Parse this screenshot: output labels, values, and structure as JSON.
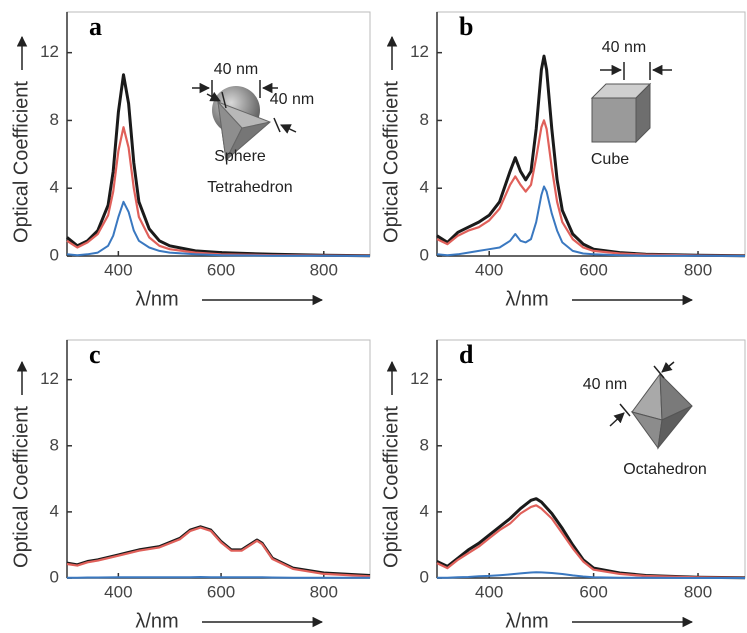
{
  "chart_data": [
    {
      "type": "line",
      "panel_label": "a",
      "size_label": "40 nm",
      "shape_label": "Sphere",
      "x_label": "λ/nm",
      "y_label": "Optical Coefficient",
      "xlim": [
        300,
        890
      ],
      "ylim": [
        0,
        14.4
      ],
      "xticks": [
        400,
        600,
        800
      ],
      "yticks": [
        0,
        4,
        8,
        12
      ],
      "x": [
        300,
        320,
        340,
        360,
        380,
        390,
        400,
        410,
        420,
        430,
        440,
        460,
        480,
        500,
        550,
        600,
        700,
        800,
        890
      ],
      "series": [
        {
          "color": "#1a1a1a",
          "values": [
            1.1,
            0.6,
            0.9,
            1.5,
            3.0,
            5.0,
            8.5,
            10.7,
            9.0,
            5.5,
            3.2,
            1.6,
            0.9,
            0.6,
            0.3,
            0.2,
            0.1,
            0.05,
            0.02
          ]
        },
        {
          "color": "#e0605a",
          "values": [
            0.9,
            0.5,
            0.8,
            1.3,
            2.4,
            3.8,
            6.2,
            7.6,
            6.4,
            4.0,
            2.3,
            1.1,
            0.6,
            0.4,
            0.2,
            0.1,
            0.05,
            0.03,
            0.01
          ]
        },
        {
          "color": "#3a78c0",
          "values": [
            0.1,
            0.05,
            0.1,
            0.2,
            0.6,
            1.2,
            2.3,
            3.2,
            2.6,
            1.5,
            0.9,
            0.5,
            0.3,
            0.2,
            0.1,
            0.05,
            0.02,
            0.01,
            0
          ]
        }
      ]
    },
    {
      "type": "line",
      "panel_label": "b",
      "size_label": "40 nm",
      "shape_label": "Cube",
      "x_label": "λ/nm",
      "y_label": "Optical Coefficient",
      "xlim": [
        300,
        890
      ],
      "ylim": [
        0,
        14.4
      ],
      "xticks": [
        400,
        600,
        800
      ],
      "yticks": [
        0,
        4,
        8,
        12
      ],
      "x": [
        300,
        320,
        340,
        360,
        380,
        400,
        420,
        440,
        450,
        460,
        470,
        480,
        490,
        500,
        505,
        510,
        520,
        530,
        540,
        560,
        580,
        600,
        650,
        700,
        800,
        890
      ],
      "series": [
        {
          "color": "#1a1a1a",
          "values": [
            1.2,
            0.8,
            1.4,
            1.7,
            2.0,
            2.4,
            3.2,
            5.0,
            5.8,
            5.0,
            4.5,
            5.0,
            7.5,
            11.0,
            11.8,
            11.0,
            7.5,
            4.5,
            2.7,
            1.3,
            0.7,
            0.4,
            0.2,
            0.1,
            0.05,
            0.02
          ]
        },
        {
          "color": "#e0605a",
          "values": [
            1.0,
            0.7,
            1.2,
            1.5,
            1.7,
            2.1,
            2.8,
            4.2,
            4.7,
            4.2,
            3.8,
            4.2,
            5.8,
            7.6,
            8.0,
            7.5,
            5.2,
            3.2,
            2.0,
            1.0,
            0.5,
            0.3,
            0.15,
            0.08,
            0.03,
            0.01
          ]
        },
        {
          "color": "#3a78c0",
          "values": [
            0.1,
            0.05,
            0.1,
            0.2,
            0.3,
            0.4,
            0.5,
            0.9,
            1.3,
            0.9,
            0.8,
            1.0,
            2.0,
            3.6,
            4.1,
            3.8,
            2.5,
            1.5,
            0.8,
            0.3,
            0.15,
            0.1,
            0.05,
            0.02,
            0.01,
            0
          ]
        }
      ]
    },
    {
      "type": "line",
      "panel_label": "c",
      "size_label": "40 nm",
      "shape_label": "Tetrahedron",
      "x_label": "λ/nm",
      "y_label": "Optical Coefficient",
      "xlim": [
        300,
        890
      ],
      "ylim": [
        0,
        14.4
      ],
      "xticks": [
        400,
        600,
        800
      ],
      "yticks": [
        0,
        4,
        8,
        12
      ],
      "x": [
        300,
        320,
        340,
        360,
        400,
        440,
        480,
        520,
        540,
        560,
        580,
        600,
        620,
        640,
        660,
        670,
        680,
        700,
        740,
        800,
        890
      ],
      "series": [
        {
          "color": "#1a1a1a",
          "values": [
            0.9,
            0.8,
            1.0,
            1.1,
            1.4,
            1.7,
            1.9,
            2.4,
            2.9,
            3.1,
            2.9,
            2.2,
            1.7,
            1.7,
            2.1,
            2.3,
            2.1,
            1.2,
            0.6,
            0.3,
            0.15
          ]
        },
        {
          "color": "#e0605a",
          "values": [
            0.85,
            0.75,
            0.95,
            1.05,
            1.35,
            1.65,
            1.85,
            2.35,
            2.85,
            3.05,
            2.85,
            2.15,
            1.65,
            1.65,
            2.05,
            2.25,
            2.05,
            1.15,
            0.55,
            0.25,
            0.1
          ]
        },
        {
          "color": "#3a78c0",
          "values": [
            0.02,
            0.02,
            0.03,
            0.03,
            0.04,
            0.04,
            0.05,
            0.05,
            0.05,
            0.06,
            0.05,
            0.05,
            0.04,
            0.04,
            0.04,
            0.04,
            0.04,
            0.03,
            0.02,
            0.01,
            0.01
          ]
        }
      ]
    },
    {
      "type": "line",
      "panel_label": "d",
      "size_label": "40 nm",
      "shape_label": "Octahedron",
      "x_label": "λ/nm",
      "y_label": "Optical Coefficient",
      "xlim": [
        300,
        890
      ],
      "ylim": [
        0,
        14.4
      ],
      "xticks": [
        400,
        600,
        800
      ],
      "yticks": [
        0,
        4,
        8,
        12
      ],
      "x": [
        300,
        320,
        340,
        360,
        380,
        400,
        420,
        440,
        460,
        480,
        490,
        500,
        520,
        540,
        560,
        580,
        600,
        650,
        700,
        800,
        890
      ],
      "series": [
        {
          "color": "#1a1a1a",
          "values": [
            1.0,
            0.7,
            1.2,
            1.7,
            2.1,
            2.6,
            3.1,
            3.6,
            4.2,
            4.7,
            4.8,
            4.6,
            3.9,
            3.0,
            2.0,
            1.1,
            0.6,
            0.3,
            0.15,
            0.05,
            0.02
          ]
        },
        {
          "color": "#e0605a",
          "values": [
            0.9,
            0.6,
            1.1,
            1.5,
            1.9,
            2.4,
            2.9,
            3.3,
            3.9,
            4.3,
            4.4,
            4.2,
            3.6,
            2.7,
            1.8,
            1.0,
            0.5,
            0.25,
            0.12,
            0.04,
            0.01
          ]
        },
        {
          "color": "#3a78c0",
          "values": [
            0.02,
            0.02,
            0.04,
            0.06,
            0.1,
            0.13,
            0.17,
            0.22,
            0.28,
            0.33,
            0.35,
            0.34,
            0.3,
            0.24,
            0.16,
            0.09,
            0.05,
            0.02,
            0.01,
            0,
            0
          ]
        }
      ]
    }
  ]
}
